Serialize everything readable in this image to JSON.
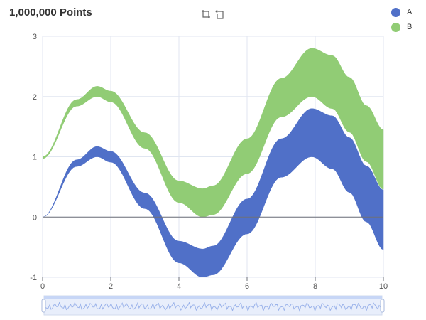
{
  "chart_data": {
    "type": "area",
    "title": "1,000,000 Points",
    "xlabel": "",
    "ylabel": "",
    "xlim": [
      0,
      10
    ],
    "ylim": [
      -1,
      3
    ],
    "x_ticks": [
      0,
      2,
      4,
      6,
      8,
      10
    ],
    "y_ticks": [
      -1,
      0,
      1,
      2,
      3
    ],
    "grid": true,
    "legend_position": "top-right",
    "series": [
      {
        "name": "A",
        "color": "#5070c8",
        "band": "lower = sin(x), upper = sin(x) + 0.08·x + 0.06·x·sin(x)... (see values)",
        "x": [
          0,
          1,
          1.6,
          2,
          3,
          4,
          4.7,
          5,
          6,
          7,
          7.9,
          8.5,
          9,
          9.5,
          10
        ],
        "lower": [
          0,
          0.84,
          1.0,
          0.91,
          0.14,
          -0.76,
          -1.0,
          -0.96,
          -0.28,
          0.66,
          1.0,
          0.8,
          0.41,
          -0.08,
          -0.54
        ],
        "upper": [
          0,
          0.95,
          1.17,
          1.09,
          0.4,
          -0.4,
          -0.53,
          -0.48,
          0.3,
          1.3,
          1.8,
          1.68,
          1.32,
          0.85,
          0.45
        ]
      },
      {
        "name": "B",
        "color": "#91cc75",
        "x": [
          0,
          1,
          1.6,
          2,
          3,
          4,
          4.7,
          5,
          6,
          7,
          7.9,
          8.5,
          9,
          9.5,
          10
        ],
        "lower": [
          0.97,
          1.84,
          2.0,
          1.91,
          1.14,
          0.24,
          0.0,
          0.04,
          0.72,
          1.66,
          2.0,
          1.8,
          1.41,
          0.92,
          0.46
        ],
        "upper": [
          1.0,
          1.95,
          2.17,
          2.09,
          1.4,
          0.6,
          0.47,
          0.52,
          1.3,
          2.3,
          2.8,
          2.68,
          2.32,
          1.85,
          1.45
        ]
      }
    ]
  },
  "toolbox": {
    "zoom_icon": "data-zoom-icon",
    "reset_icon": "zoom-reset-icon"
  },
  "datazoom": {
    "start": 0,
    "end": 10
  }
}
